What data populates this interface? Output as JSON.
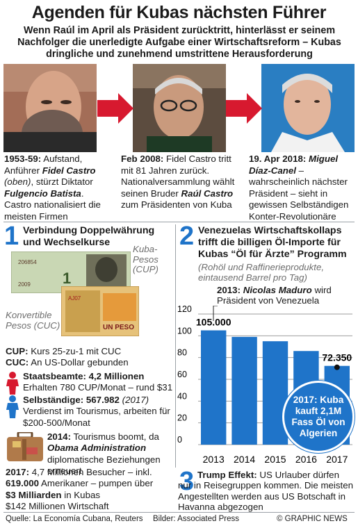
{
  "header": {
    "title": "Agenden für Kubas nächsten Führer",
    "subtitle_lines": [
      "Wenn Raúl im April als Präsident zurücktritt, hinterlässt er seinem",
      "Nachfolger die unerledigte Aufgabe einer Wirtschaftsreform – Kubas",
      "dringliche und zunehmend umstrittene Herausforderung"
    ]
  },
  "timeline": [
    {
      "date": "1953-59:",
      "parts": [
        " Aufstand, Anführer ",
        "Fidel Castro",
        " ",
        "(oben)",
        ", stürzt Diktator ",
        "Fulgencio Batista",
        ". Castro nationalisiert die meisten Firmen"
      ]
    },
    {
      "date": "Feb 2008:",
      "parts": [
        " Fidel Castro tritt mit 81 Jahren zurück. Nationalversammlung wählt seinen Bruder ",
        "Raúl Castro",
        " zum Präsidenten von Kuba"
      ]
    },
    {
      "date": "19. Apr 2018:",
      "parts": [
        " ",
        "Miguel Díaz-Canel",
        " – wahrscheinlich nächster Präsident – sieht in gewissen Selbständigen Konter-Revolutionäre"
      ]
    }
  ],
  "section1": {
    "number": "1",
    "title": "Verbindung Doppelwährung und Wechselkurse",
    "cup_label": "Kuba-Pesos (CUP)",
    "cuc_label": "Konvertible Pesos (CUC)",
    "banknote_cup": {
      "serial": "206854",
      "year": "2009",
      "denomination": "1"
    },
    "banknote_cuc": {
      "serial": "AJ07",
      "denomination": "UN PESO"
    },
    "cup_rate_key": "CUP:",
    "cup_rate_text": "Kurs 25-zu-1 mit CUC",
    "cuc_rate_key": "CUC:",
    "cuc_rate_text": "An US-Dollar gebunden",
    "state_key": "Staatsbeamte: 4,2 Millionen",
    "state_text": "Erhalten 780 CUP/Monat – rund $31",
    "self_key": "Selbständige: 567.982",
    "self_year": "(2017)",
    "self_text": "Verdienst im Tourismus, arbeiten für $200-500/Monat",
    "tourism_year": "2014:",
    "tourism_text1": "Tourismus boomt, da",
    "tourism_admin": "Obama Administration",
    "tourism_text2": "diplomatische Beziehungen erneuert",
    "visitors_year": "2017:",
    "visitors_text": "4,7 Millionen Besucher – inkl.",
    "americans_num": "619.000",
    "americans_text": "Amerikaner – pumpen über",
    "billions": "$3 Milliarden",
    "billions_text": "in Kubas",
    "private_text": "$142 Millionen Wirtschaft"
  },
  "section2": {
    "number": "2",
    "title": "Venezuelas Wirtschaftskollaps trifft die billigen Öl-Importe für Kubas “Öl für Ärzte” Programm",
    "note": "(Rohöl und Raffinerieprodukte, eintausend Barrel pro Tag)",
    "annotation_year": "2013:",
    "annotation_name": "Nicolas Maduro",
    "annotation_text": "wird Präsident von Venezuela",
    "callout": "2017: Kuba kauft 2,1M Fass Öl von Algerien"
  },
  "section3": {
    "number": "3",
    "title": "Trump Effekt:",
    "text": "US Urlauber dürfen nur in Reisegruppen kommen. Die meisten Angestellten werden aus US Botschaft in Havanna abgezogen"
  },
  "chart_data": {
    "type": "bar",
    "categories": [
      "2013",
      "2014",
      "2015",
      "2016",
      "2017"
    ],
    "values": [
      105000,
      99000,
      95000,
      86000,
      72350
    ],
    "value_labels": [
      "105.000",
      "",
      "",
      "",
      "72.350"
    ],
    "ylim": [
      0,
      120
    ],
    "yticks": [
      "0",
      "20",
      "40",
      "60",
      "80",
      "100",
      "120"
    ],
    "ytick_values": [
      0,
      20,
      40,
      60,
      80,
      100,
      120
    ],
    "grid": true,
    "color": "#1f74c9"
  },
  "footer": {
    "source": "Quelle: La Economía Cubana, Reuters",
    "photos": "Bilder: Associated Press",
    "credit": "© GRAPHIC NEWS"
  },
  "colors": {
    "accent": "#1f74c9",
    "arrow": "#d7192f",
    "callout": "#1f74c9",
    "photo_left_bg": "#a36d57",
    "photo_right_bg": "#2a7ec2"
  }
}
